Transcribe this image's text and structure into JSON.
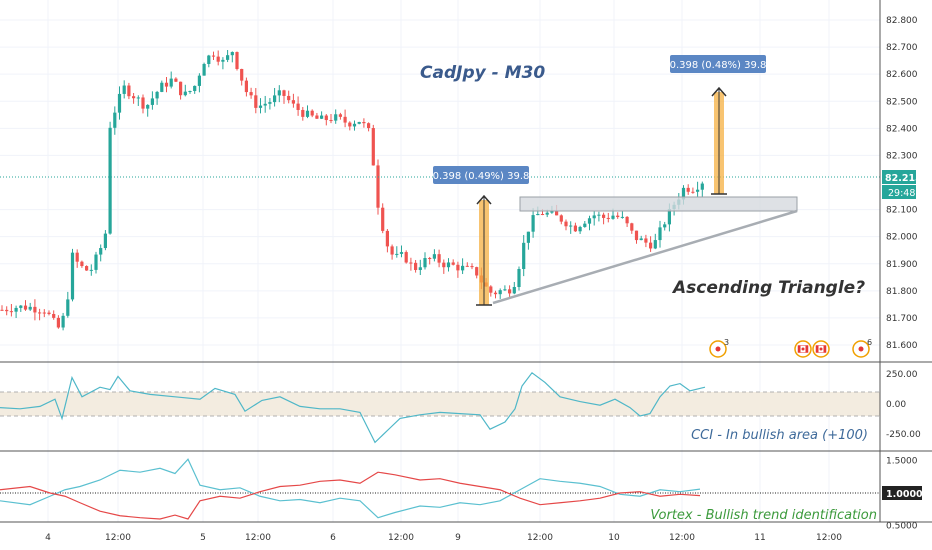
{
  "chart_data": {
    "type": "candlestick",
    "title": "CadJpy - M30",
    "pattern_label": "Ascending Triangle?",
    "last_price": "82.215",
    "countdown": "29:48",
    "measure_left": "0.398 (0.49%) 39.8",
    "measure_right": "0.398 (0.48%) 39.8",
    "price_ticks": [
      "82.800",
      "82.700",
      "82.600",
      "82.500",
      "82.400",
      "82.300",
      "82.100",
      "82.000",
      "81.900",
      "81.800",
      "81.700",
      "81.600"
    ],
    "price_tick_values": [
      82.8,
      82.7,
      82.6,
      82.5,
      82.4,
      82.3,
      82.1,
      82.0,
      81.9,
      81.8,
      81.7,
      81.6
    ],
    "ylim": [
      81.55,
      82.85
    ],
    "time_labels": [
      "4",
      "12:00",
      "5",
      "12:00",
      "6",
      "12:00",
      "9",
      "12:00",
      "10",
      "12:00",
      "11",
      "12:00"
    ],
    "events": [
      "3",
      "6"
    ],
    "cci": {
      "label": "CCI - In bullish area (+100)",
      "ticks": [
        "250.00",
        "0.00",
        "-250.00"
      ],
      "tick_values": [
        250,
        0,
        -250
      ],
      "band": [
        100,
        -100
      ],
      "ylim": [
        -330,
        330
      ]
    },
    "vortex": {
      "label": "Vortex - Bullish trend identification",
      "ticks": [
        "1.5000",
        "0.5000"
      ],
      "tick_values": [
        1.5,
        0.5
      ],
      "level": "1.0000",
      "level_value": 1.0,
      "ylim": [
        0.42,
        1.56
      ]
    },
    "colors": {
      "up": "#26a69a",
      "down": "#ef5350",
      "measure": "#f5b041",
      "cci_line": "#4fb7c8",
      "vi_plus": "#5bc0d0",
      "vi_minus": "#e54848",
      "title": "#3a5a8c",
      "cci_label": "#3e6a9a",
      "vortex_label": "#3c9a3c",
      "pattern": "#333333",
      "band": "#f3ece0"
    }
  }
}
